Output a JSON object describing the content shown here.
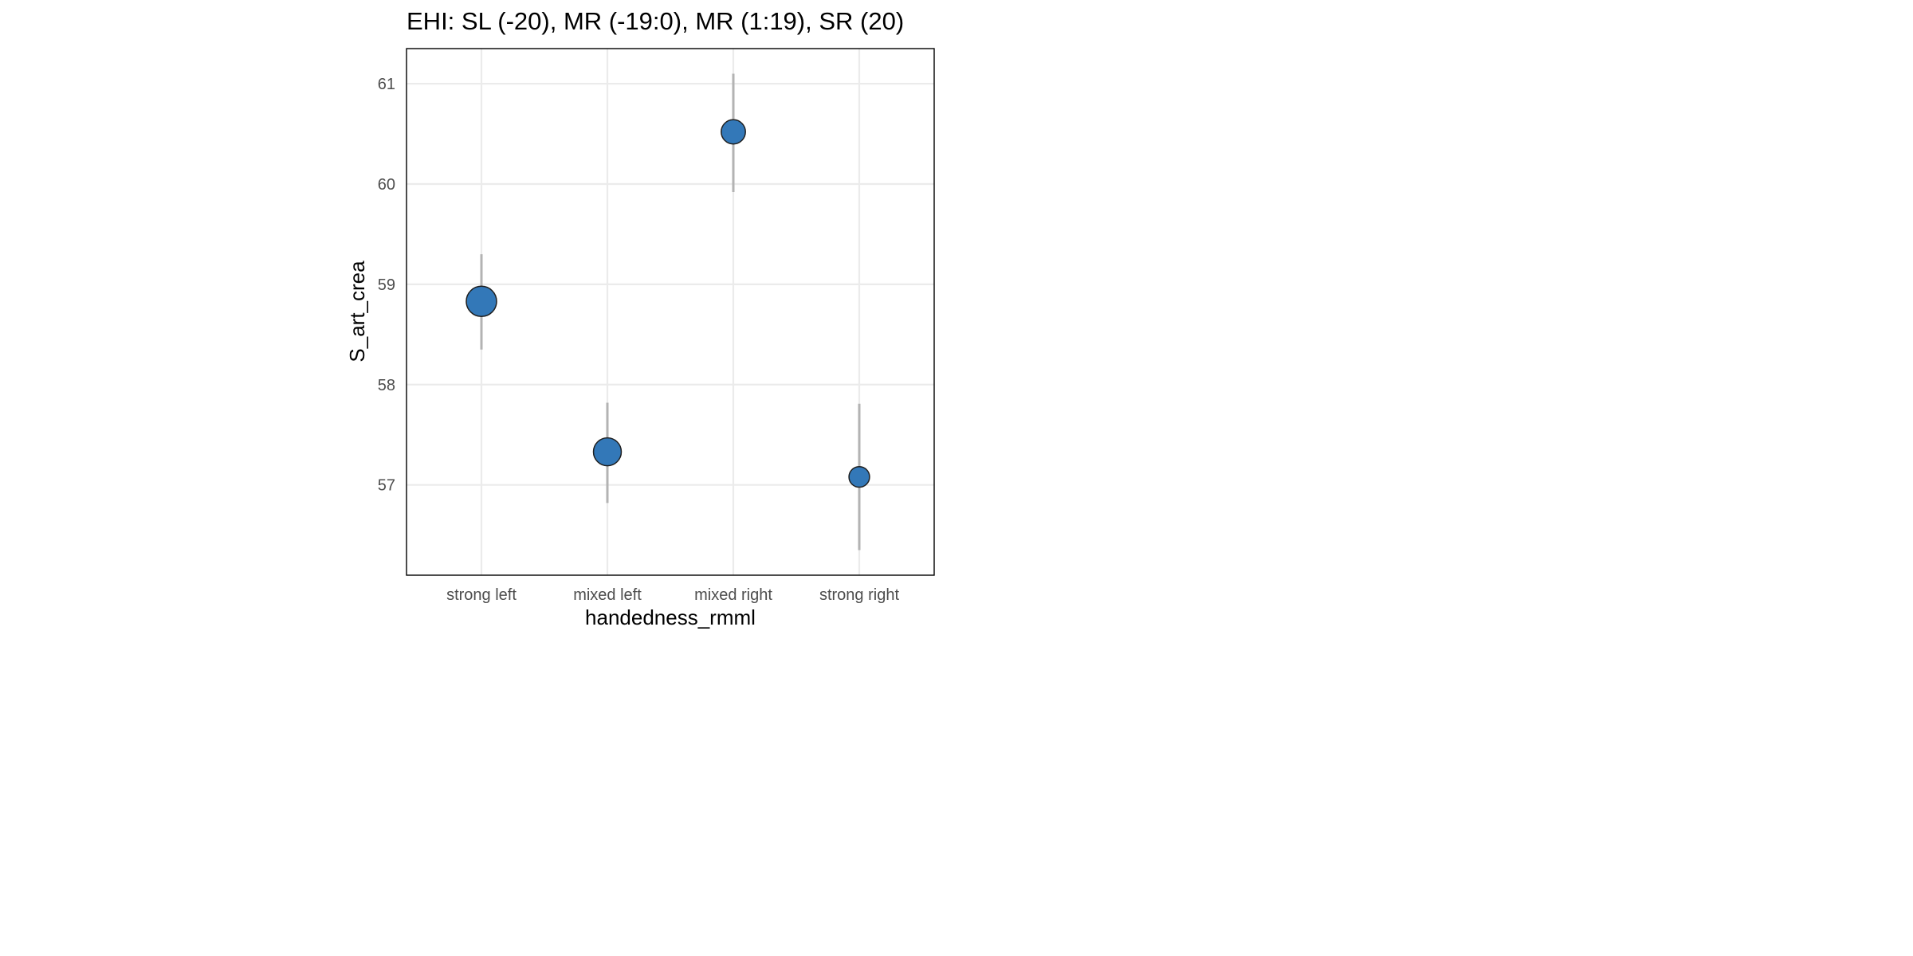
{
  "chart_data": {
    "type": "scatter",
    "title": "EHI: SL (-20), MR (-19:0), MR (1:19), SR (20)",
    "xlabel": "handedness_rmml",
    "ylabel": "S_art_crea",
    "categories": [
      "strong left",
      "mixed left",
      "mixed right",
      "strong right"
    ],
    "ylim": [
      56.1,
      61.35
    ],
    "yticks": [
      57,
      58,
      59,
      60,
      61
    ],
    "grid": true,
    "legend": "none",
    "point_color": "#3378B8",
    "error_bar_color": "#B3B3B3",
    "series": [
      {
        "values": [
          58.83,
          57.33,
          60.52,
          57.08
        ],
        "lower": [
          58.35,
          56.82,
          59.92,
          56.35
        ],
        "upper": [
          59.3,
          57.82,
          61.1,
          57.81
        ],
        "relative_size": [
          1.0,
          0.92,
          0.8,
          0.68
        ]
      }
    ]
  }
}
